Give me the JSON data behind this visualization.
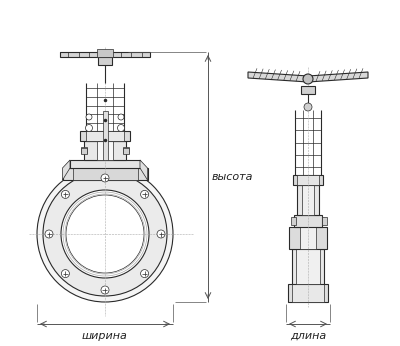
{
  "bg_color": "#ffffff",
  "line_color": "#2a2a2a",
  "dim_color": "#555555",
  "label_color": "#222222",
  "label_width": "ширина",
  "label_length": "длина",
  "label_height": "высота",
  "font_size": 8,
  "fig_width": 4.0,
  "fig_height": 3.46,
  "dpi": 100
}
